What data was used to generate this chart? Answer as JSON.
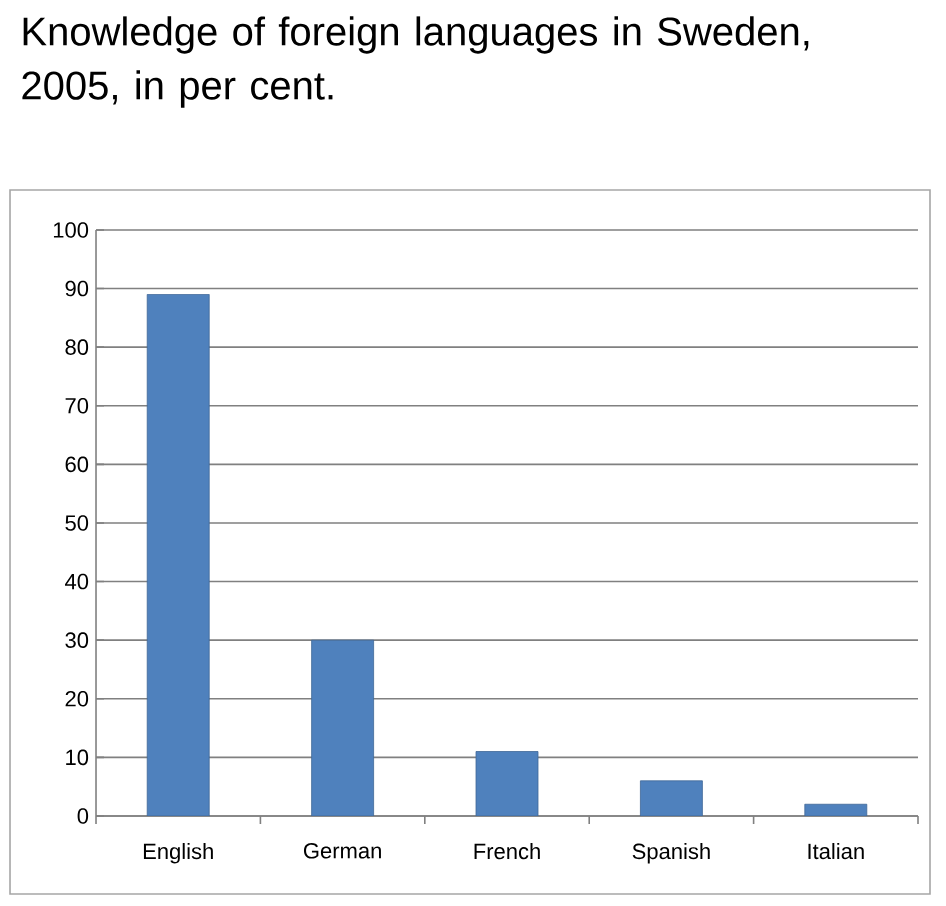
{
  "chart_data": {
    "type": "bar",
    "title": "Knowledge of foreign languages in Sweden, 2005, in per cent.",
    "categories": [
      "English",
      "German",
      "French",
      "Spanish",
      "Italian"
    ],
    "values": [
      89,
      30,
      11,
      6,
      2
    ],
    "color": "#4f81bd",
    "ylim": [
      0,
      100
    ],
    "yticks": [
      0,
      10,
      20,
      30,
      40,
      50,
      60,
      70,
      80,
      90,
      100
    ],
    "grid": "y"
  }
}
